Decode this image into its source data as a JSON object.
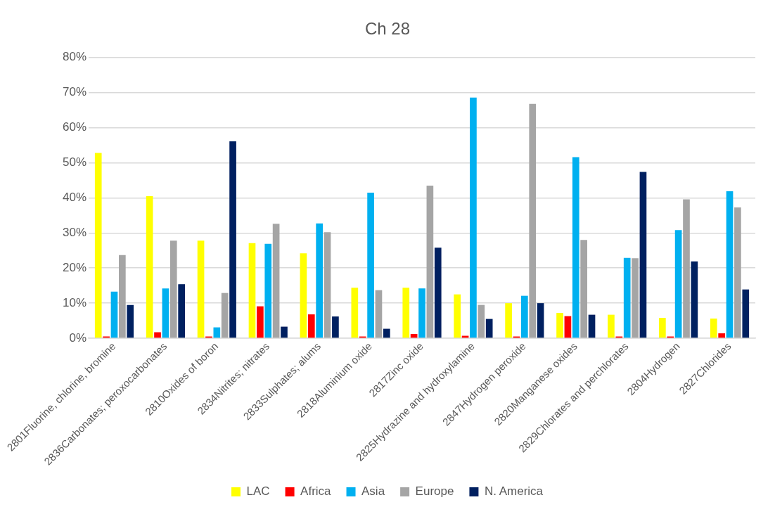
{
  "chart_data": {
    "type": "bar",
    "title": "Ch 28",
    "categories": [
      "2801Fluorine, chlorine, bromine",
      "2836Carbonates; peroxocarbonates",
      "2810Oxides of boron",
      "2834Nitrites; nitrates",
      "2833Sulphates; alums",
      "2818Aluminium oxide",
      "2817Zinc oxide",
      "2825Hydrazine and hydroxylamine",
      "2847Hydrogen peroxide",
      "2820Manganese oxides",
      "2829Chlorates and perchlorates",
      "2804Hydrogen",
      "2827Chlorides"
    ],
    "series": [
      {
        "name": "LAC",
        "color": "#ffff00",
        "values": [
          52.8,
          40.5,
          27.8,
          27.1,
          24.2,
          14.4,
          14.4,
          12.5,
          10.0,
          7.2,
          6.7,
          5.8,
          5.6
        ]
      },
      {
        "name": "Africa",
        "color": "#ff0000",
        "values": [
          0.5,
          1.7,
          0.5,
          9.1,
          6.8,
          0.5,
          1.2,
          0.7,
          0.5,
          6.3,
          0.5,
          0.5,
          1.4
        ]
      },
      {
        "name": "Asia",
        "color": "#00b0f0",
        "values": [
          13.3,
          14.2,
          3.1,
          26.9,
          32.7,
          41.5,
          14.2,
          68.6,
          12.1,
          51.6,
          22.9,
          30.8,
          41.9
        ]
      },
      {
        "name": "Europe",
        "color": "#a5a5a5",
        "values": [
          23.7,
          27.8,
          12.9,
          32.6,
          30.2,
          13.7,
          43.5,
          9.5,
          66.8,
          28.0,
          22.8,
          39.6,
          37.3
        ]
      },
      {
        "name": "N. America",
        "color": "#002060",
        "values": [
          9.5,
          15.4,
          56.1,
          3.3,
          6.2,
          2.7,
          25.8,
          5.5,
          10.0,
          6.7,
          47.4,
          21.9,
          13.9
        ]
      }
    ],
    "ylim": [
      0,
      80
    ],
    "yticks": [
      {
        "value": 0,
        "label": "0%"
      },
      {
        "value": 10,
        "label": "10%"
      },
      {
        "value": 20,
        "label": "20%"
      },
      {
        "value": 30,
        "label": "30%"
      },
      {
        "value": 40,
        "label": "40%"
      },
      {
        "value": 50,
        "label": "50%"
      },
      {
        "value": 60,
        "label": "60%"
      },
      {
        "value": 70,
        "label": "70%"
      },
      {
        "value": 80,
        "label": "80%"
      }
    ],
    "grid": "y",
    "legend": "bottom"
  }
}
